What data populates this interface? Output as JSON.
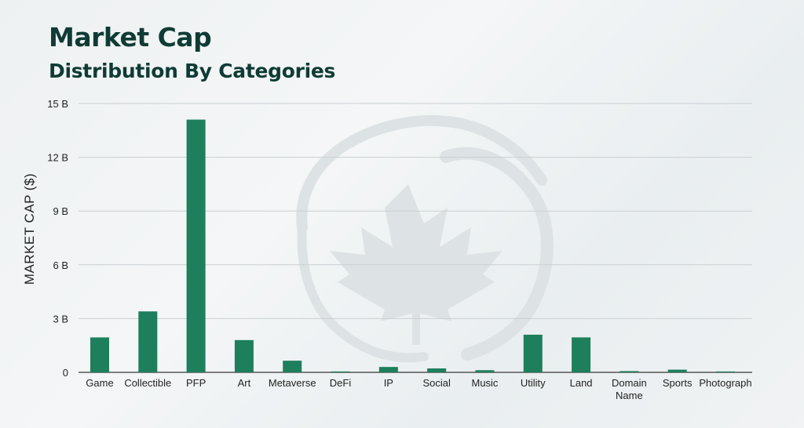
{
  "chart_data": {
    "type": "bar",
    "title": "Market Cap",
    "subtitle": "Distribution By Categories",
    "xlabel": "",
    "ylabel": "MARKET CAP ($)",
    "categories": [
      "Game",
      "Collectible",
      "PFP",
      "Art",
      "Metaverse",
      "DeFi",
      "IP",
      "Social",
      "Music",
      "Utility",
      "Land",
      "Domain Name",
      "Sports",
      "Photograph"
    ],
    "values": [
      1.95,
      3.4,
      14.1,
      1.8,
      0.65,
      0.05,
      0.3,
      0.22,
      0.12,
      2.1,
      1.95,
      0.07,
      0.15,
      0.05
    ],
    "value_unit": "B",
    "ylim": [
      0,
      15
    ],
    "yticks": [
      {
        "value": 0,
        "label": "0"
      },
      {
        "value": 3,
        "label": "3 B"
      },
      {
        "value": 6,
        "label": "6 B"
      },
      {
        "value": 9,
        "label": "9 B"
      },
      {
        "value": 12,
        "label": "12 B"
      },
      {
        "value": 15,
        "label": "15 B"
      }
    ],
    "grid": true,
    "legend": "none",
    "bar_color": "#1e7f5c",
    "grid_color": "#c9cfd2",
    "axis_color": "#555555"
  },
  "watermark": {
    "name": "maple-leaf-logo-icon",
    "color": "#dde3e4"
  }
}
